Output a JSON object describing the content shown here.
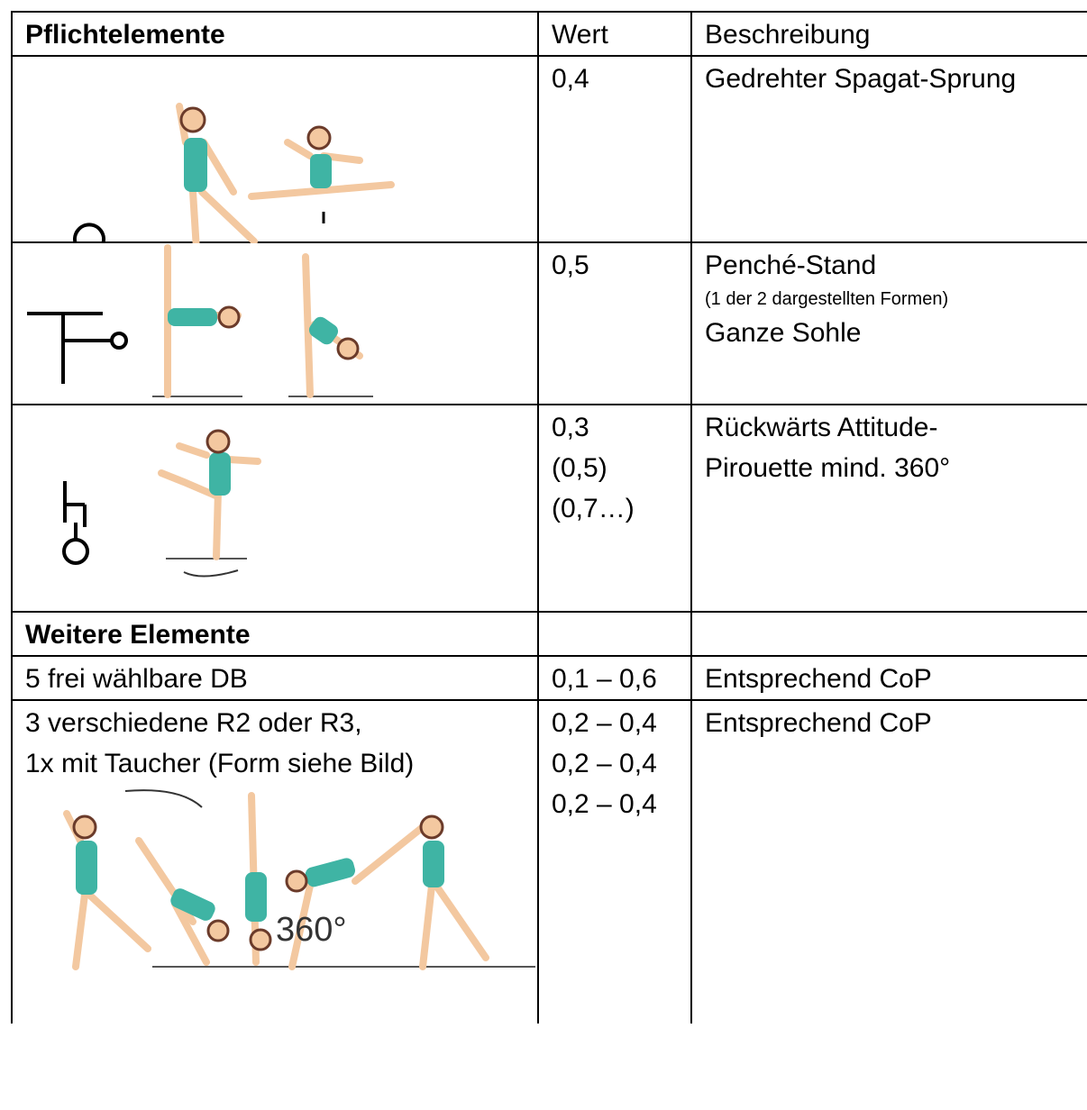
{
  "table": {
    "header": [
      "Pflichtelemente",
      "Wert",
      "Beschreibung"
    ],
    "rows": [
      {
        "value": [
          "0,4"
        ],
        "description": [
          "Gedrehter Spagat-Sprung"
        ]
      },
      {
        "value": [
          "0,5"
        ],
        "description": [
          "Penché-Stand"
        ],
        "note": "(1 der 2 dargestellten Formen)",
        "description_2": "Ganze Sohle"
      },
      {
        "value": [
          "0,3",
          "(0,5)",
          "(0,7…)"
        ],
        "description": [
          "Rückwärts Attitude-",
          "Pirouette mind. 360°"
        ]
      },
      {
        "section": "Weitere Elemente"
      },
      {
        "element": [
          "5 frei wählbare DB"
        ],
        "value": [
          "0,1 – 0,6"
        ],
        "description": [
          "Entsprechend CoP"
        ]
      },
      {
        "element": [
          "3 verschiedene R2 oder R3,",
          "1x mit Taucher (Form siehe Bild)"
        ],
        "value": [
          "0,2 – 0,4",
          "0,2 – 0,4",
          "0,2 – 0,4"
        ],
        "description": [
          "Entsprechend CoP"
        ],
        "image_label": "360°"
      }
    ]
  }
}
